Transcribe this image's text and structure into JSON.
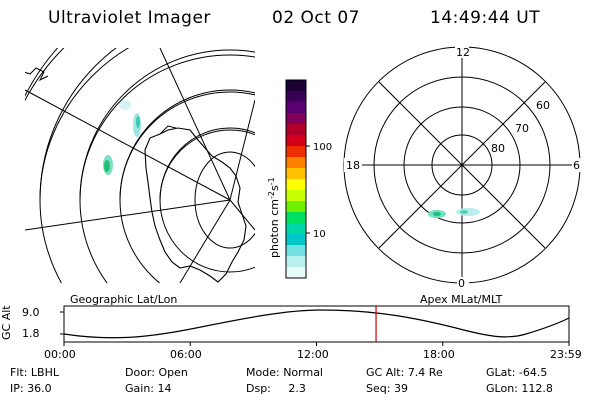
{
  "header": {
    "instrument": "Ultraviolet Imager",
    "date": "02 Oct 07",
    "time": "14:49:44 UT"
  },
  "left_map": {
    "caption": "Geographic Lat/Lon"
  },
  "right_map": {
    "caption": "Apex MLat/MLT",
    "mlt_labels": {
      "top": "12",
      "left": "18",
      "right": "6",
      "bottom": "0"
    },
    "lat_labels": [
      "60",
      "70",
      "80"
    ]
  },
  "colorbar": {
    "label": "photon cm",
    "label_sup1": "-2",
    "label_s": "s",
    "label_sup2": "-1",
    "ticks": [
      "100",
      "10"
    ],
    "colors": [
      "#1a0033",
      "#3a0055",
      "#5a0070",
      "#80005a",
      "#b0002a",
      "#d4001a",
      "#ee3000",
      "#ff8000",
      "#ffc000",
      "#ffff00",
      "#c8ff00",
      "#70f000",
      "#00e060",
      "#00d8a8",
      "#00c8c8",
      "#70e0e0",
      "#b8f0f0",
      "#e6fafa"
    ]
  },
  "altitude_plot": {
    "ylabel": "GC Alt",
    "y_ticks": [
      "9.0",
      "1.8"
    ],
    "x_ticks": [
      "00:00",
      "06:00",
      "12:00",
      "18:00",
      "23:59"
    ],
    "current_time_hours": 14.83,
    "marker_color": "#cc0000"
  },
  "info": {
    "row1": [
      {
        "label": "Flt:",
        "value": "LBHL"
      },
      {
        "label": "Door:",
        "value": "Open"
      },
      {
        "label": "Mode:",
        "value": "Normal"
      },
      {
        "label": "GC Alt:",
        "value": "7.4 Re"
      },
      {
        "label": "GLat:",
        "value": "-64.5"
      }
    ],
    "row2": [
      {
        "label": "IP:",
        "value": "36.0"
      },
      {
        "label": "Gain:",
        "value": "14"
      },
      {
        "label": "Dsp:",
        "value": "2.3"
      },
      {
        "label": "Seq:",
        "value": "39"
      },
      {
        "label": "GLon:",
        "value": "112.8"
      }
    ]
  }
}
